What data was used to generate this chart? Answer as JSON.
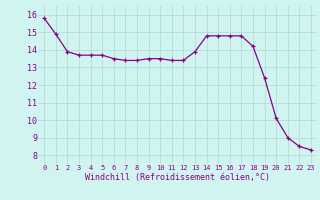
{
  "x": [
    0,
    1,
    2,
    3,
    4,
    5,
    6,
    7,
    8,
    9,
    10,
    11,
    12,
    13,
    14,
    15,
    16,
    17,
    18,
    19,
    20,
    21,
    22,
    23
  ],
  "y": [
    15.8,
    14.9,
    13.9,
    13.7,
    13.7,
    13.7,
    13.5,
    13.4,
    13.4,
    13.5,
    13.5,
    13.4,
    13.4,
    13.9,
    14.8,
    14.8,
    14.8,
    14.8,
    14.2,
    12.4,
    10.1,
    9.0,
    8.5,
    8.3
  ],
  "line_color": "#880088",
  "marker": "+",
  "markersize": 3,
  "linewidth": 0.9,
  "markeredgewidth": 0.9,
  "xlabel": "Windchill (Refroidissement éolien,°C)",
  "xlabel_fontsize": 6,
  "ylabel_ticks": [
    8,
    9,
    10,
    11,
    12,
    13,
    14,
    15,
    16
  ],
  "xlim": [
    -0.5,
    23.5
  ],
  "ylim": [
    7.5,
    16.5
  ],
  "xtick_labels": [
    "0",
    "1",
    "2",
    "3",
    "4",
    "5",
    "6",
    "7",
    "8",
    "9",
    "10",
    "11",
    "12",
    "13",
    "14",
    "15",
    "16",
    "17",
    "18",
    "19",
    "20",
    "21",
    "22",
    "23"
  ],
  "bg_color": "#d0f5f0",
  "grid_color": "#b0d8d4",
  "tick_color": "#880088",
  "label_color": "#880088",
  "xtick_fontsize": 5,
  "ytick_fontsize": 6
}
